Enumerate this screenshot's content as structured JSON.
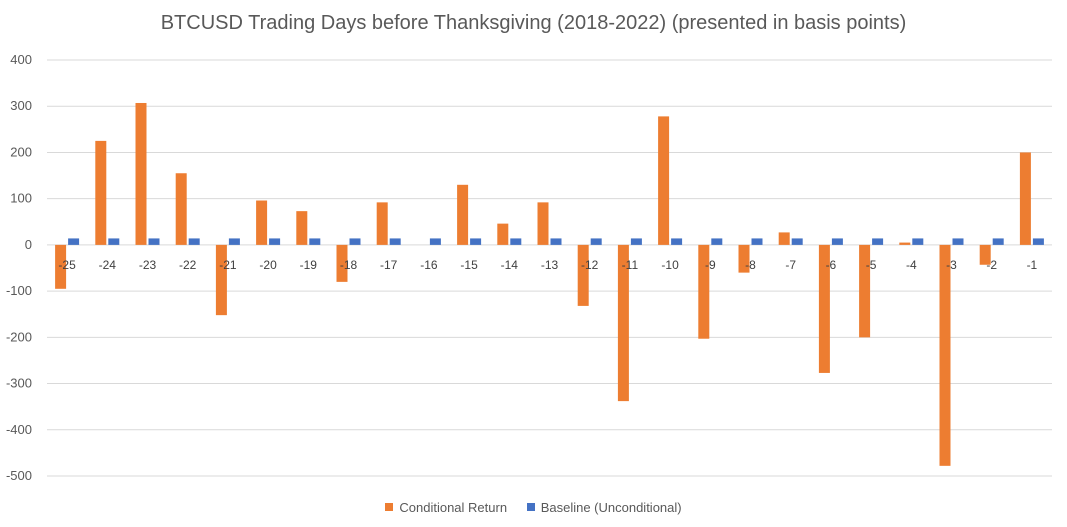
{
  "chart_data": {
    "type": "bar",
    "title": "BTCUSD Trading Days before Thanksgiving (2018-2022) (presented in basis points)",
    "xlabel": "",
    "ylabel": "",
    "ylim": [
      -500,
      400
    ],
    "yticks": [
      400,
      300,
      200,
      100,
      0,
      -100,
      -200,
      -300,
      -400,
      -500
    ],
    "grid": true,
    "legend_position": "bottom",
    "categories": [
      "-25",
      "-24",
      "-23",
      "-22",
      "-21",
      "-20",
      "-19",
      "-18",
      "-17",
      "-16",
      "-15",
      "-14",
      "-13",
      "-12",
      "-11",
      "-10",
      "-9",
      "-8",
      "-7",
      "-6",
      "-5",
      "-4",
      "-3",
      "-2",
      "-1"
    ],
    "series": [
      {
        "name": "Conditional Return",
        "color": "#ED7D31",
        "values": [
          -95,
          225,
          307,
          155,
          -152,
          96,
          73,
          -80,
          92,
          0,
          130,
          46,
          92,
          -132,
          -338,
          278,
          -203,
          -60,
          27,
          -277,
          -200,
          5,
          -478,
          -43,
          200
        ]
      },
      {
        "name": "Baseline (Unconditional)",
        "color": "#4472C4",
        "values": [
          14,
          14,
          14,
          14,
          14,
          14,
          14,
          14,
          14,
          14,
          14,
          14,
          14,
          14,
          14,
          14,
          14,
          14,
          14,
          14,
          14,
          14,
          14,
          14,
          14
        ]
      }
    ]
  }
}
